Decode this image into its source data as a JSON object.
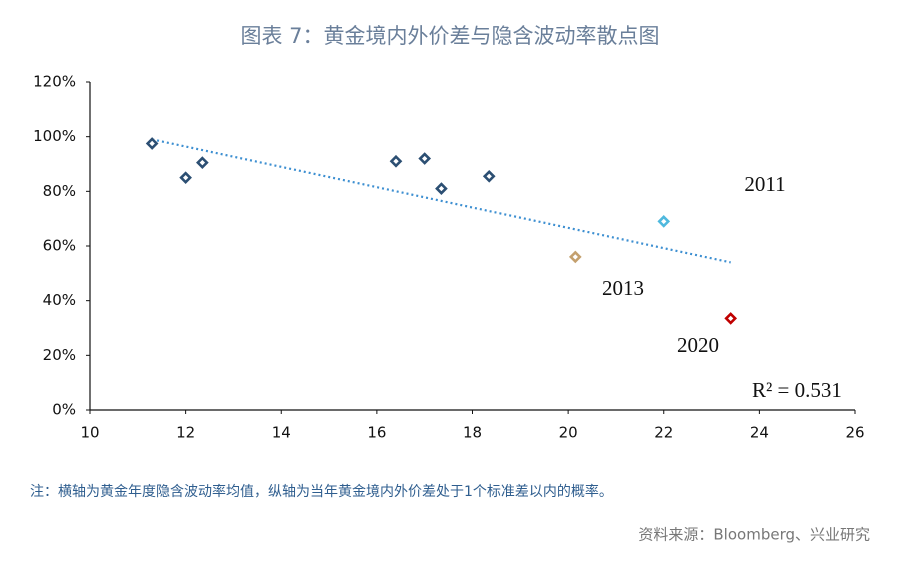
{
  "title": "图表 7：黄金境内外价差与隐含波动率散点图",
  "note": "注：横轴为黄金年度隐含波动率均值，纵轴为当年黄金境内外价差处于1个标准差以内的概率。",
  "source": "资料来源：Bloomberg、兴业研究",
  "chart_data": {
    "type": "scatter",
    "x": [
      11.3,
      12.0,
      12.35,
      16.4,
      17.0,
      17.35,
      18.35,
      20.15,
      22.0,
      23.4
    ],
    "values": [
      97.5,
      85,
      90.5,
      91,
      92,
      81,
      85.5,
      56,
      69,
      33.5
    ],
    "colors": [
      "#2c4f73",
      "#2c4f73",
      "#2c4f73",
      "#2c4f73",
      "#2c4f73",
      "#2c4f73",
      "#2c4f73",
      "#c4a06e",
      "#4fb9de",
      "#c00000"
    ],
    "trendline": {
      "x": [
        11.3,
        23.4
      ],
      "y": [
        99,
        54
      ],
      "color": "#3d8fd1"
    },
    "annotations": [
      "2011",
      "2013",
      "2020",
      "R² = 0.531"
    ],
    "xlim": [
      10,
      26
    ],
    "xticks": [
      10,
      12,
      14,
      16,
      18,
      20,
      22,
      24,
      26
    ],
    "ylim": [
      0,
      120
    ],
    "yticks": [
      {
        "value": 0,
        "label": "0%"
      },
      {
        "value": 20,
        "label": "20%"
      },
      {
        "value": 40,
        "label": "40%"
      },
      {
        "value": 60,
        "label": "60%"
      },
      {
        "value": 80,
        "label": "80%"
      },
      {
        "value": 100,
        "label": "100%"
      },
      {
        "value": 120,
        "label": "120%"
      }
    ],
    "grid": false
  }
}
